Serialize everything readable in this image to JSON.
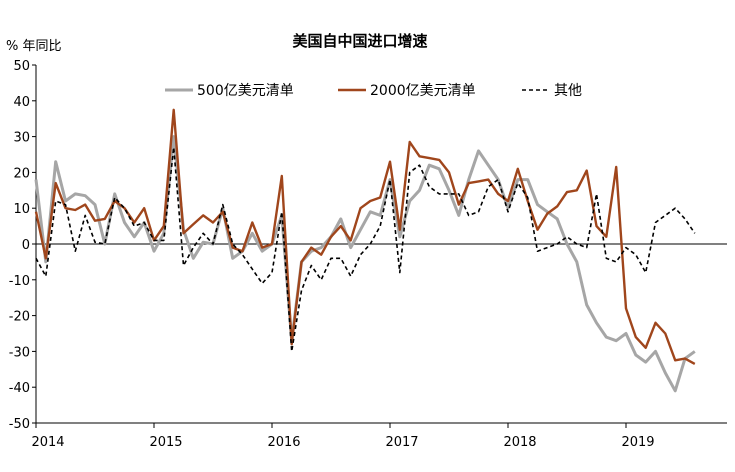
{
  "chart_data": {
    "type": "line",
    "title": "美国自中国进口增速",
    "ylabel": "% 年同比",
    "ylim": [
      -50,
      50
    ],
    "yticks": [
      "50",
      "40",
      "30",
      "20",
      "10",
      "0",
      "-10",
      "-20",
      "-30",
      "-40",
      "-50"
    ],
    "xlim": [
      2014.0,
      2019.7
    ],
    "xticks": [
      "2014",
      "2015",
      "2016",
      "2017",
      "2018",
      "2019"
    ],
    "grid": false,
    "legend_position": "top",
    "colors": {
      "s500": "#a6a6a6",
      "s2000": "#a0461c",
      "other": "#000000"
    },
    "series": [
      {
        "name": "500亿美元清单",
        "style": "solid",
        "points": [
          [
            2014.0,
            18
          ],
          [
            2014.083,
            -5
          ],
          [
            2014.167,
            23
          ],
          [
            2014.25,
            12
          ],
          [
            2014.333,
            14
          ],
          [
            2014.417,
            13.5
          ],
          [
            2014.5,
            11
          ],
          [
            2014.583,
            0
          ],
          [
            2014.667,
            14
          ],
          [
            2014.75,
            6
          ],
          [
            2014.833,
            2
          ],
          [
            2014.917,
            6
          ],
          [
            2015.0,
            -2
          ],
          [
            2015.083,
            3
          ],
          [
            2015.167,
            30
          ],
          [
            2015.25,
            4
          ],
          [
            2015.333,
            -4
          ],
          [
            2015.417,
            0.5
          ],
          [
            2015.5,
            0
          ],
          [
            2015.583,
            10
          ],
          [
            2015.667,
            -4
          ],
          [
            2015.75,
            -2
          ],
          [
            2015.833,
            3
          ],
          [
            2015.917,
            -2
          ],
          [
            2016.0,
            0
          ],
          [
            2016.083,
            8
          ],
          [
            2016.167,
            -27
          ],
          [
            2016.25,
            -5
          ],
          [
            2016.333,
            -2
          ],
          [
            2016.417,
            -1
          ],
          [
            2016.5,
            2
          ],
          [
            2016.583,
            7
          ],
          [
            2016.667,
            -1
          ],
          [
            2016.75,
            4
          ],
          [
            2016.833,
            9
          ],
          [
            2016.917,
            8
          ],
          [
            2017.0,
            18
          ],
          [
            2017.083,
            2
          ],
          [
            2017.167,
            12
          ],
          [
            2017.25,
            15
          ],
          [
            2017.333,
            22
          ],
          [
            2017.417,
            21
          ],
          [
            2017.5,
            15
          ],
          [
            2017.583,
            8
          ],
          [
            2017.667,
            18
          ],
          [
            2017.75,
            26
          ],
          [
            2017.833,
            22
          ],
          [
            2017.917,
            18
          ],
          [
            2018.0,
            10
          ],
          [
            2018.083,
            18
          ],
          [
            2018.167,
            18
          ],
          [
            2018.25,
            11
          ],
          [
            2018.333,
            9
          ],
          [
            2018.417,
            7
          ],
          [
            2018.5,
            0
          ],
          [
            2018.583,
            -5
          ],
          [
            2018.667,
            -17
          ],
          [
            2018.75,
            -22
          ],
          [
            2018.833,
            -26
          ],
          [
            2018.917,
            -27
          ],
          [
            2019.0,
            -25
          ],
          [
            2019.083,
            -31
          ],
          [
            2019.167,
            -33
          ],
          [
            2019.25,
            -30
          ],
          [
            2019.333,
            -36
          ],
          [
            2019.417,
            -41
          ],
          [
            2019.5,
            -32
          ],
          [
            2019.583,
            -30
          ]
        ]
      },
      {
        "name": "2000亿美元清单",
        "style": "solid",
        "points": [
          [
            2014.0,
            9
          ],
          [
            2014.083,
            -4
          ],
          [
            2014.167,
            17
          ],
          [
            2014.25,
            10
          ],
          [
            2014.333,
            9.5
          ],
          [
            2014.417,
            11
          ],
          [
            2014.5,
            6.5
          ],
          [
            2014.583,
            7
          ],
          [
            2014.667,
            12
          ],
          [
            2014.75,
            10
          ],
          [
            2014.833,
            6
          ],
          [
            2014.917,
            10
          ],
          [
            2015.0,
            1
          ],
          [
            2015.083,
            5
          ],
          [
            2015.167,
            37.5
          ],
          [
            2015.25,
            3
          ],
          [
            2015.333,
            5.5
          ],
          [
            2015.417,
            8
          ],
          [
            2015.5,
            6
          ],
          [
            2015.583,
            9
          ],
          [
            2015.667,
            -1
          ],
          [
            2015.75,
            -2
          ],
          [
            2015.833,
            6
          ],
          [
            2015.917,
            -1
          ],
          [
            2016.0,
            0
          ],
          [
            2016.083,
            19
          ],
          [
            2016.167,
            -28
          ],
          [
            2016.25,
            -5
          ],
          [
            2016.333,
            -1
          ],
          [
            2016.417,
            -3
          ],
          [
            2016.5,
            2
          ],
          [
            2016.583,
            5
          ],
          [
            2016.667,
            1
          ],
          [
            2016.75,
            10
          ],
          [
            2016.833,
            12
          ],
          [
            2016.917,
            13
          ],
          [
            2017.0,
            23
          ],
          [
            2017.083,
            4
          ],
          [
            2017.167,
            28.5
          ],
          [
            2017.25,
            24.5
          ],
          [
            2017.333,
            24
          ],
          [
            2017.417,
            23.5
          ],
          [
            2017.5,
            20
          ],
          [
            2017.583,
            11
          ],
          [
            2017.667,
            17
          ],
          [
            2017.75,
            17.5
          ],
          [
            2017.833,
            18
          ],
          [
            2017.917,
            14
          ],
          [
            2018.0,
            12
          ],
          [
            2018.083,
            21
          ],
          [
            2018.167,
            12
          ],
          [
            2018.25,
            4
          ],
          [
            2018.333,
            8.5
          ],
          [
            2018.417,
            10.5
          ],
          [
            2018.5,
            14.5
          ],
          [
            2018.583,
            15
          ],
          [
            2018.667,
            20.5
          ],
          [
            2018.75,
            5
          ],
          [
            2018.833,
            2
          ],
          [
            2018.917,
            21.5
          ],
          [
            2019.0,
            -18
          ],
          [
            2019.083,
            -26
          ],
          [
            2019.167,
            -29
          ],
          [
            2019.25,
            -22
          ],
          [
            2019.333,
            -25
          ],
          [
            2019.417,
            -32.5
          ],
          [
            2019.5,
            -32
          ],
          [
            2019.583,
            -33.5
          ]
        ]
      },
      {
        "name": "其他",
        "style": "dashed",
        "points": [
          [
            2014.0,
            -4
          ],
          [
            2014.083,
            -9
          ],
          [
            2014.167,
            12
          ],
          [
            2014.25,
            11
          ],
          [
            2014.333,
            -2
          ],
          [
            2014.417,
            8
          ],
          [
            2014.5,
            0.5
          ],
          [
            2014.583,
            0
          ],
          [
            2014.667,
            13
          ],
          [
            2014.75,
            10
          ],
          [
            2014.833,
            5
          ],
          [
            2014.917,
            6
          ],
          [
            2015.0,
            1
          ],
          [
            2015.083,
            1
          ],
          [
            2015.167,
            27
          ],
          [
            2015.25,
            -6
          ],
          [
            2015.333,
            -1
          ],
          [
            2015.417,
            3
          ],
          [
            2015.5,
            0
          ],
          [
            2015.583,
            11
          ],
          [
            2015.667,
            0
          ],
          [
            2015.75,
            -3
          ],
          [
            2015.833,
            -7
          ],
          [
            2015.917,
            -11
          ],
          [
            2016.0,
            -8
          ],
          [
            2016.083,
            9
          ],
          [
            2016.167,
            -30
          ],
          [
            2016.25,
            -13
          ],
          [
            2016.333,
            -6
          ],
          [
            2016.417,
            -10
          ],
          [
            2016.5,
            -4
          ],
          [
            2016.583,
            -4
          ],
          [
            2016.667,
            -9
          ],
          [
            2016.75,
            -3
          ],
          [
            2016.833,
            0
          ],
          [
            2016.917,
            5
          ],
          [
            2017.0,
            18
          ],
          [
            2017.083,
            -8
          ],
          [
            2017.167,
            20
          ],
          [
            2017.25,
            22
          ],
          [
            2017.333,
            16
          ],
          [
            2017.417,
            14
          ],
          [
            2017.5,
            14
          ],
          [
            2017.583,
            14
          ],
          [
            2017.667,
            8
          ],
          [
            2017.75,
            9
          ],
          [
            2017.833,
            16
          ],
          [
            2017.917,
            18
          ],
          [
            2018.0,
            9
          ],
          [
            2018.083,
            17
          ],
          [
            2018.167,
            13
          ],
          [
            2018.25,
            -2
          ],
          [
            2018.333,
            -1
          ],
          [
            2018.417,
            0
          ],
          [
            2018.5,
            2
          ],
          [
            2018.583,
            0
          ],
          [
            2018.667,
            -1
          ],
          [
            2018.75,
            14
          ],
          [
            2018.833,
            -4
          ],
          [
            2018.917,
            -5
          ],
          [
            2019.0,
            -1
          ],
          [
            2019.083,
            -3
          ],
          [
            2019.167,
            -8
          ],
          [
            2019.25,
            6
          ],
          [
            2019.333,
            8
          ],
          [
            2019.417,
            10
          ],
          [
            2019.5,
            7
          ],
          [
            2019.583,
            3
          ]
        ]
      }
    ]
  }
}
